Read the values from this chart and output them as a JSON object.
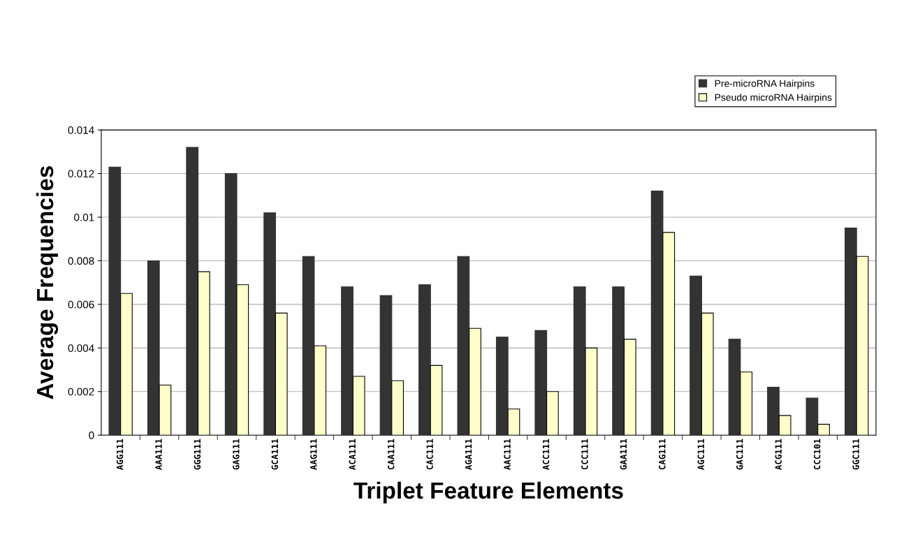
{
  "chart_data": {
    "type": "bar",
    "xlabel": "Triplet Feature Elements",
    "ylabel": "Average Frequencies",
    "categories": [
      "AGG111",
      "AAA111",
      "GGG111",
      "GAG111",
      "GCA111",
      "AAG111",
      "ACA111",
      "CAA111",
      "CAC111",
      "AGA111",
      "AAC111",
      "ACC111",
      "CCC111",
      "GAA111",
      "CAG111",
      "AGC111",
      "GAC111",
      "ACG111",
      "CCC101",
      "GGC111"
    ],
    "series": [
      {
        "name": "Pre-microRNA Hairpins",
        "color": "#333333",
        "values": [
          0.0123,
          0.008,
          0.0132,
          0.012,
          0.0102,
          0.0082,
          0.0068,
          0.0064,
          0.0069,
          0.0082,
          0.0045,
          0.0048,
          0.0068,
          0.0068,
          0.0112,
          0.0073,
          0.0044,
          0.0022,
          0.0017,
          0.0095
        ]
      },
      {
        "name": "Pseudo microRNA Hairpins",
        "color": "#ffffcc",
        "values": [
          0.0065,
          0.0023,
          0.0075,
          0.0069,
          0.0056,
          0.0041,
          0.0027,
          0.0025,
          0.0032,
          0.0049,
          0.0012,
          0.002,
          0.004,
          0.0044,
          0.0093,
          0.0056,
          0.0029,
          0.0009,
          0.0005,
          0.0082
        ]
      }
    ],
    "ylim": [
      0,
      0.014
    ],
    "yticks": [
      0,
      0.002,
      0.004,
      0.006,
      0.008,
      0.01,
      0.012,
      0.014
    ],
    "grid": "y",
    "legend": "top right"
  }
}
